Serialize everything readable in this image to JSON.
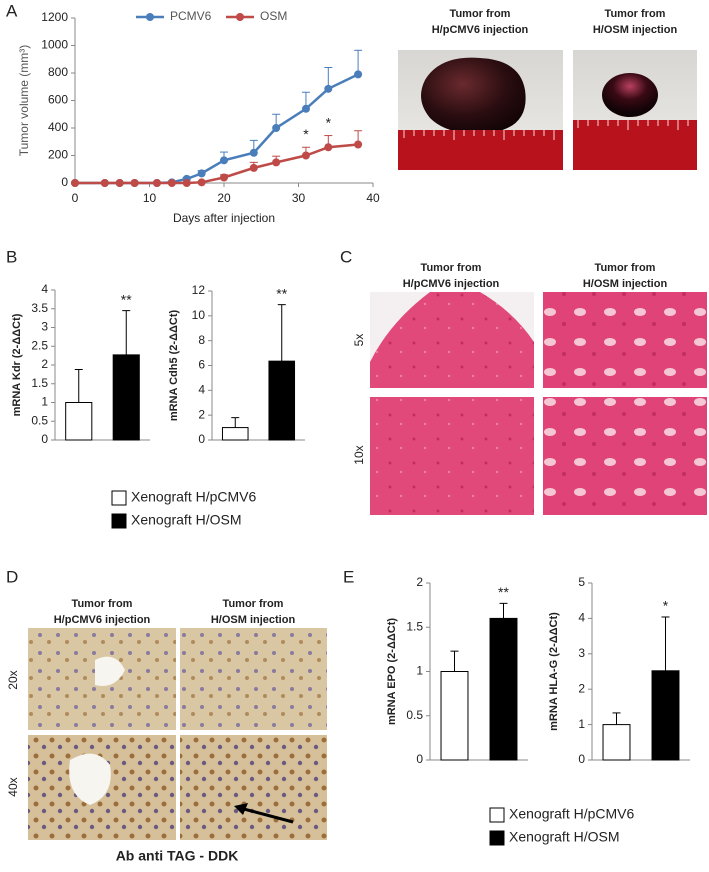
{
  "chart_data": [
    {
      "type": "line",
      "xlabel": "Days after injection",
      "ylabel": "Tumor volume (mm³)",
      "x": [
        0,
        4,
        6,
        8,
        11,
        13,
        15,
        17,
        20,
        24,
        27,
        31,
        34,
        38
      ],
      "series": [
        {
          "name": "PCMV6",
          "color": "#4a7ebb",
          "values": [
            0,
            0,
            0,
            0,
            0,
            5,
            30,
            70,
            165,
            220,
            400,
            540,
            685,
            790
          ],
          "errors": [
            0,
            0,
            0,
            0,
            0,
            5,
            10,
            20,
            60,
            90,
            100,
            120,
            155,
            175
          ]
        },
        {
          "name": "OSM",
          "color": "#be4b48",
          "values": [
            0,
            0,
            0,
            0,
            0,
            0,
            0,
            5,
            40,
            110,
            150,
            200,
            260,
            280
          ],
          "errors": [
            0,
            0,
            0,
            0,
            0,
            0,
            0,
            5,
            20,
            40,
            45,
            60,
            85,
            100
          ]
        }
      ],
      "annotations": [
        {
          "x": 31,
          "text": "*"
        },
        {
          "x": 34,
          "text": "*"
        }
      ],
      "xlim": [
        0,
        40
      ],
      "xticks": [
        0,
        10,
        20,
        30,
        40
      ],
      "ylim": [
        0,
        1200
      ],
      "yticks": [
        0,
        200,
        400,
        600,
        800,
        1000,
        1200
      ],
      "legend": "top"
    },
    {
      "type": "bar",
      "ylabel": "mRNA Kdr (2-ΔΔCt)",
      "categories": [
        null,
        null
      ],
      "values": [
        1,
        2.27
      ],
      "errors": [
        0.88,
        1.18
      ],
      "colors": [
        "#ffffff",
        "#000000"
      ],
      "annotation": "**",
      "ylim": [
        0,
        4
      ],
      "yticks": [
        0,
        0.5,
        1,
        1.5,
        2,
        2.5,
        3,
        3.5,
        4
      ]
    },
    {
      "type": "bar",
      "ylabel": "mRNA Cdh5 (2-ΔΔCt)",
      "categories": [
        null,
        null
      ],
      "values": [
        1,
        6.35
      ],
      "errors": [
        0.8,
        4.55
      ],
      "colors": [
        "#ffffff",
        "#000000"
      ],
      "annotation": "**",
      "ylim": [
        0,
        12
      ],
      "yticks": [
        0,
        2,
        4,
        6,
        8,
        10,
        12
      ]
    },
    {
      "type": "bar",
      "ylabel": "mRNA EPO (2-ΔΔCt)",
      "categories": [
        null,
        null
      ],
      "values": [
        1,
        1.6
      ],
      "errors": [
        0.23,
        0.17
      ],
      "colors": [
        "#ffffff",
        "#000000"
      ],
      "annotation": "**",
      "ylim": [
        0,
        2
      ],
      "yticks": [
        0,
        0.5,
        1,
        1.5,
        2
      ]
    },
    {
      "type": "bar",
      "ylabel": "mRNA HLA-G (2-ΔΔCt)",
      "categories": [
        null,
        null
      ],
      "values": [
        1,
        2.52
      ],
      "errors": [
        0.33,
        1.52
      ],
      "colors": [
        "#ffffff",
        "#000000"
      ],
      "annotation": "*",
      "ylim": [
        0,
        5
      ],
      "yticks": [
        0,
        1,
        2,
        3,
        4,
        5
      ]
    }
  ],
  "legends": [
    {
      "items": [
        {
          "label": "Xenograft H/pCMV6",
          "color": "#ffffff"
        },
        {
          "label": "Xenograft H/OSM",
          "color": "#000000"
        }
      ]
    },
    {
      "items": [
        {
          "label": "Xenograft H/pCMV6",
          "color": "#ffffff"
        },
        {
          "label": "Xenograft H/OSM",
          "color": "#000000"
        }
      ]
    }
  ],
  "panels": {
    "letters": [
      "A",
      "B",
      "C",
      "D",
      "E"
    ],
    "photo_captions": [
      [
        "Tumor from",
        "H/pCMV6 injection"
      ],
      [
        "Tumor from",
        "H/OSM injection"
      ]
    ],
    "histology_c_captions": [
      [
        "Tumor from",
        "H/pCMV6 injection"
      ],
      [
        "Tumor from",
        "H/OSM injection"
      ]
    ],
    "histology_c_rows": [
      "5x",
      "10x"
    ],
    "histology_d_captions": [
      [
        "Tumor from",
        "H/pCMV6 injection"
      ],
      [
        "Tumor from",
        "H/OSM injection"
      ]
    ],
    "histology_d_rows": [
      "20x",
      "40x"
    ],
    "stain_label": "Ab anti TAG - DDK"
  }
}
